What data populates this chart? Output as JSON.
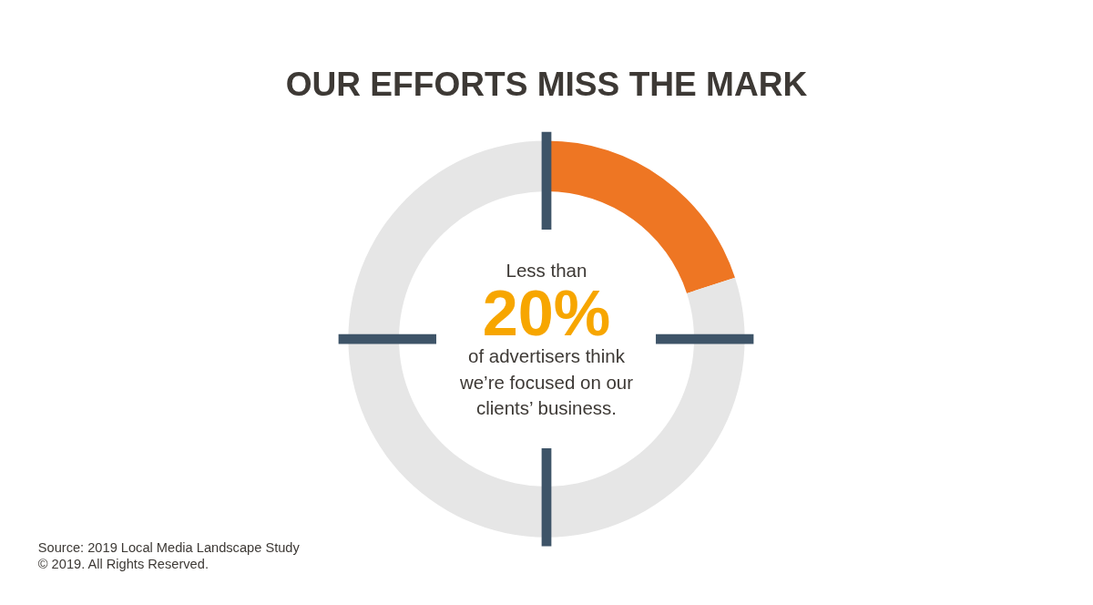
{
  "chart_data": {
    "type": "donut",
    "title": "OUR EFFORTS MISS THE MARK",
    "categories": [
      null,
      null
    ],
    "values": [
      20,
      80
    ],
    "colors": [
      "#ee7623",
      "#e6e6e6"
    ],
    "value_labels": [
      "20%",
      null
    ],
    "annotations": [
      "Less than",
      "of advertisers think we’re focused on our clients’ business.",
      "Source: 2019 Local Media Landscape Study",
      "© 2019. All Rights Reserved."
    ]
  }
}
